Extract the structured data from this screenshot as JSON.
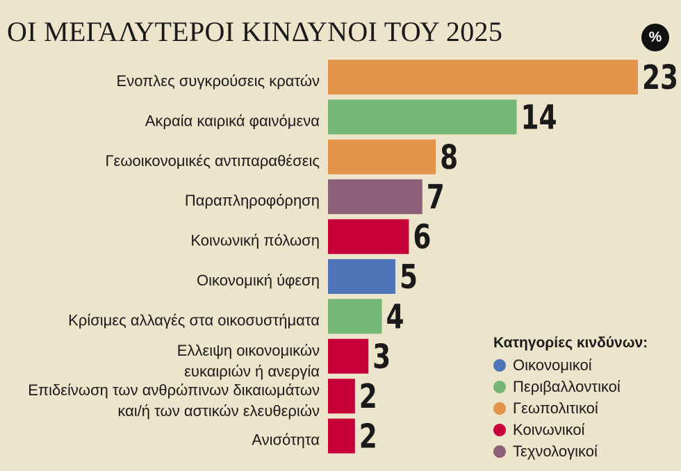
{
  "header": {
    "title": "ΟΙ ΜΕΓΑΛΥΤΕΡΟΙ ΚΙΝΔΥΝΟΙ ΤΟΥ 2025",
    "unit": "%"
  },
  "legend": {
    "title": "Κατηγορίες κινδύνων:",
    "items": [
      {
        "label": "Οικονομικοί",
        "color": "#4f74b8"
      },
      {
        "label": "Περιβαλλοντικοί",
        "color": "#74b673"
      },
      {
        "label": "Γεωπολιτικοί",
        "color": "#e2954a"
      },
      {
        "label": "Κοινωνικοί",
        "color": "#c8003a"
      },
      {
        "label": "Τεχνολογικοί",
        "color": "#8c6076"
      }
    ]
  },
  "chart_data": {
    "type": "bar",
    "orientation": "horizontal",
    "title": "ΟΙ ΜΕΓΑΛΥΤΕΡΟΙ ΚΙΝΔΥΝΟΙ ΤΟΥ 2025",
    "unit": "%",
    "xlim": [
      0,
      23
    ],
    "grid": false,
    "legend_position": "bottom-right",
    "categories": [
      [
        "Ενοπλες συγκρούσεις κρατών"
      ],
      [
        "Ακραία καιρικά φαινόμενα"
      ],
      [
        "Γεωοικονομικές αντιπαραθέσεις"
      ],
      [
        "Παραπληροφόρηση"
      ],
      [
        "Κοινωνική πόλωση"
      ],
      [
        "Οικονομική ύφεση"
      ],
      [
        "Κρίσιμες αλλαγές στα οικοσυστήματα"
      ],
      [
        "Ελλειψη οικονομικών",
        "ευκαιριών ή ανεργία"
      ],
      [
        "Επιδείνωση των ανθρώπινων δικαιωμάτων",
        "και/ή των αστικών ελευθεριών"
      ],
      [
        "Ανισότητα"
      ]
    ],
    "values": [
      23,
      14,
      8,
      7,
      6,
      5,
      4,
      3,
      2,
      2
    ],
    "value_labels": [
      "23",
      "14",
      "8",
      "7",
      "6",
      "5",
      "4",
      "3",
      "2",
      "2"
    ],
    "bar_category": [
      "Γεωπολιτικοί",
      "Περιβαλλοντικοί",
      "Γεωπολιτικοί",
      "Τεχνολογικοί",
      "Κοινωνικοί",
      "Οικονομικοί",
      "Περιβαλλοντικοί",
      "Κοινωνικοί",
      "Κοινωνικοί",
      "Κοινωνικοί"
    ],
    "bar_colors": [
      "#e2954a",
      "#74b673",
      "#e2954a",
      "#8c6076",
      "#c8003a",
      "#4f74b8",
      "#74b673",
      "#c8003a",
      "#c8003a",
      "#c8003a"
    ]
  }
}
